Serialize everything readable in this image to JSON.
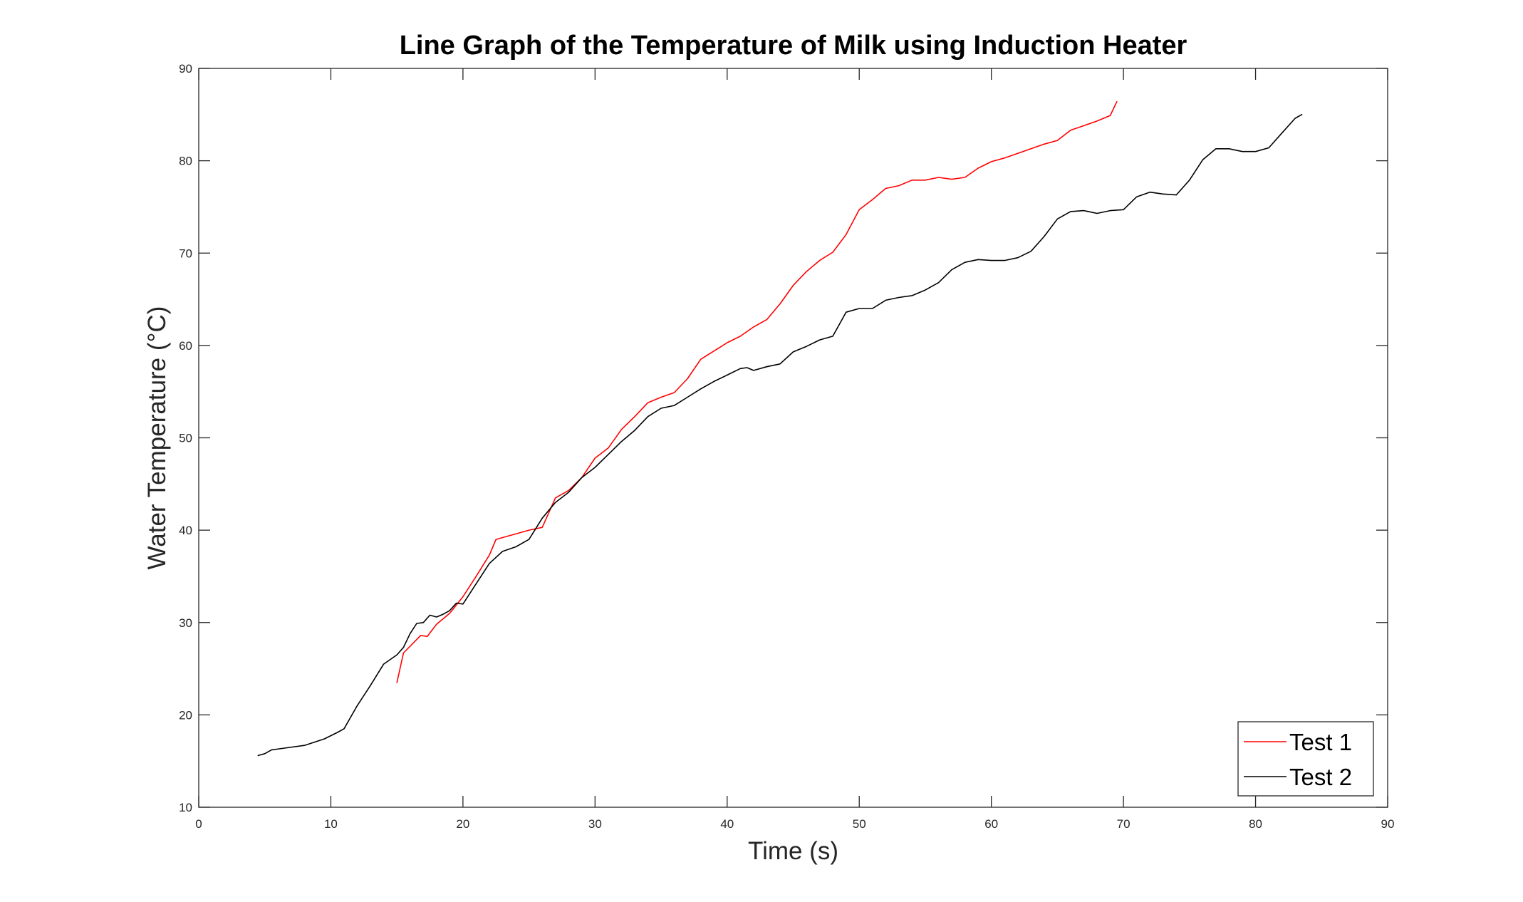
{
  "chart_data": {
    "type": "line",
    "title": "Line Graph of the Temperature of Milk using Induction Heater",
    "xlabel": "Time (s)",
    "ylabel": "Water Temperature (°C)",
    "xlim": [
      0,
      90
    ],
    "ylim": [
      10,
      90
    ],
    "xticks": [
      0,
      10,
      20,
      30,
      40,
      50,
      60,
      70,
      80,
      90
    ],
    "yticks": [
      10,
      20,
      30,
      40,
      50,
      60,
      70,
      80,
      90
    ],
    "grid": false,
    "legend_position": "bottom-right",
    "series": [
      {
        "name": "Test 1",
        "color": "#ff0000",
        "x": [
          15.0,
          15.5,
          16.8,
          17.3,
          18.0,
          19.0,
          20.0,
          21.0,
          22.0,
          22.5,
          25.0,
          26.0,
          27.0,
          28.0,
          29.0,
          30.0,
          31.0,
          32.0,
          33.0,
          34.0,
          35.0,
          36.0,
          37.0,
          38.0,
          39.0,
          40.0,
          41.0,
          42.0,
          43.0,
          44.0,
          45.0,
          46.0,
          47.0,
          48.0,
          49.0,
          50.0,
          51.0,
          52.0,
          53.0,
          54.0,
          55.0,
          56.0,
          57.0,
          58.0,
          59.0,
          60.0,
          61.0,
          62.0,
          63.0,
          64.0,
          65.0,
          66.0,
          67.0,
          68.0,
          69.0,
          69.5
        ],
        "y": [
          23.5,
          26.7,
          28.6,
          28.5,
          29.8,
          31.0,
          32.8,
          35.0,
          37.3,
          39.0,
          40.0,
          40.3,
          43.5,
          44.3,
          45.7,
          47.8,
          48.9,
          50.9,
          52.3,
          53.8,
          54.4,
          54.9,
          56.4,
          58.5,
          59.4,
          60.3,
          61.0,
          62.0,
          62.8,
          64.5,
          66.5,
          68.0,
          69.2,
          70.1,
          72.0,
          74.7,
          75.8,
          77.0,
          77.3,
          77.9,
          77.9,
          78.2,
          78.0,
          78.2,
          79.2,
          79.9,
          80.3,
          80.8,
          81.3,
          81.8,
          82.2,
          83.3,
          83.8,
          84.3,
          84.9,
          86.4
        ]
      },
      {
        "name": "Test 2",
        "color": "#000000",
        "x": [
          4.5,
          5.0,
          5.5,
          6.5,
          8.0,
          9.5,
          10.5,
          11.0,
          12.0,
          13.0,
          14.0,
          15.0,
          15.5,
          16.0,
          16.5,
          17.0,
          17.5,
          18.0,
          18.5,
          19.0,
          19.5,
          20.0,
          21.0,
          22.0,
          23.0,
          24.0,
          25.0,
          26.0,
          27.0,
          28.0,
          29.0,
          30.0,
          31.0,
          32.0,
          33.0,
          34.0,
          35.0,
          36.0,
          37.0,
          38.0,
          39.0,
          40.0,
          41.0,
          41.5,
          42.0,
          43.0,
          44.0,
          45.0,
          46.0,
          47.0,
          48.0,
          49.0,
          50.0,
          51.0,
          52.0,
          53.0,
          54.0,
          55.0,
          56.0,
          57.0,
          58.0,
          59.0,
          60.0,
          61.0,
          62.0,
          63.0,
          64.0,
          65.0,
          66.0,
          67.0,
          68.0,
          69.0,
          70.0,
          71.0,
          72.0,
          73.0,
          74.0,
          75.0,
          76.0,
          77.0,
          78.0,
          79.0,
          80.0,
          81.0,
          82.0,
          83.0,
          83.5
        ],
        "y": [
          15.6,
          15.8,
          16.2,
          16.4,
          16.7,
          17.4,
          18.1,
          18.5,
          21.0,
          23.2,
          25.5,
          26.5,
          27.3,
          28.8,
          29.9,
          30.0,
          30.8,
          30.6,
          30.9,
          31.3,
          32.1,
          32.0,
          34.2,
          36.4,
          37.7,
          38.2,
          39.0,
          41.3,
          43.0,
          44.1,
          45.7,
          46.8,
          48.2,
          49.6,
          50.8,
          52.3,
          53.2,
          53.5,
          54.4,
          55.3,
          56.1,
          56.8,
          57.5,
          57.6,
          57.3,
          57.7,
          58.0,
          59.3,
          59.9,
          60.6,
          61.0,
          63.6,
          64.0,
          64.0,
          64.9,
          65.2,
          65.4,
          66.0,
          66.8,
          68.2,
          69.0,
          69.3,
          69.2,
          69.2,
          69.5,
          70.2,
          71.8,
          73.7,
          74.5,
          74.6,
          74.3,
          74.6,
          74.7,
          76.1,
          76.6,
          76.4,
          76.3,
          77.9,
          80.1,
          81.3,
          81.3,
          81.0,
          81.0,
          81.4,
          83.0,
          84.6,
          85.0
        ]
      }
    ]
  }
}
